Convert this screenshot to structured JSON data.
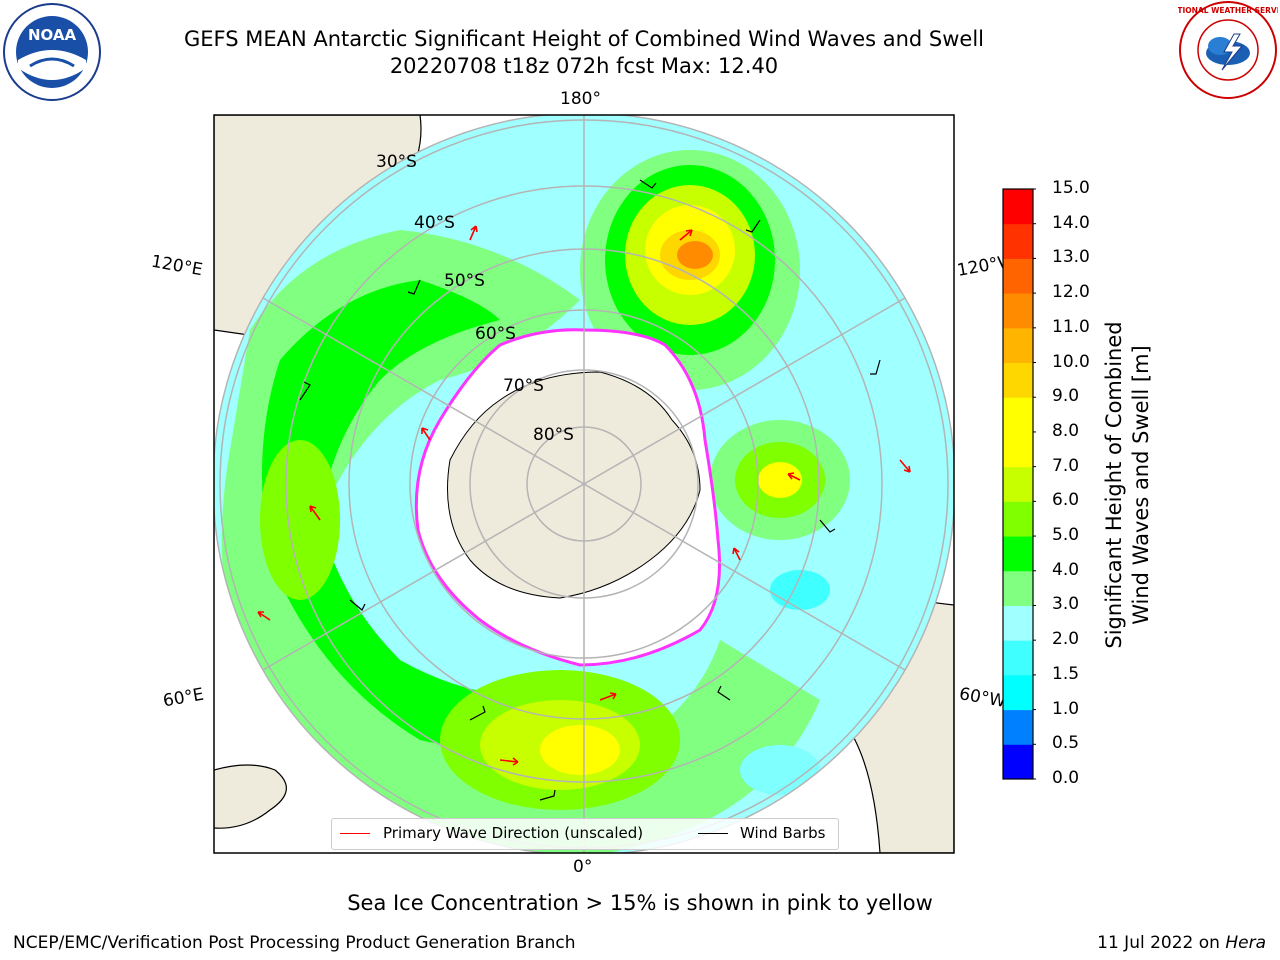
{
  "title": {
    "line1": "GEFS MEAN Antarctic Significant Height of Combined Wind Waves and Swell",
    "line2": "20220708 t18z 072h fcst   Max: 12.40"
  },
  "logos": {
    "left": {
      "name": "noaa-logo",
      "text": "NOAA"
    },
    "right": {
      "name": "nws-logo",
      "text": "NATIONAL WEATHER SERVICE"
    }
  },
  "map": {
    "projection": "south polar stereographic",
    "latitude_labels": [
      "30°S",
      "40°S",
      "50°S",
      "60°S",
      "70°S",
      "80°S"
    ],
    "longitude_labels": {
      "top": "180°",
      "bottom": "0°",
      "left_upper": "120°E",
      "left_lower": "60°E",
      "right_upper": "120°W",
      "right_lower": "60°W"
    },
    "colors": {
      "land": "#efebdc",
      "ice": "#ffffff",
      "ice_edge": "#ff33ff",
      "graticule": "#b4b4b4",
      "coast": "#000000"
    }
  },
  "colorbar": {
    "label": "Significant Height of Combined Wind Waves and Swell [m]",
    "label_line1": "Significant Height of Combined",
    "label_line2": "Wind Waves and Swell [m]",
    "ticks": [
      "0.0",
      "0.5",
      "1.0",
      "1.5",
      "2.0",
      "3.0",
      "4.0",
      "5.0",
      "6.0",
      "7.0",
      "8.0",
      "9.0",
      "10.0",
      "11.0",
      "12.0",
      "13.0",
      "14.0",
      "15.0"
    ],
    "colors": [
      "#0000ff",
      "#0080ff",
      "#00ffff",
      "#40ffff",
      "#a0ffff",
      "#80ff80",
      "#00ff00",
      "#80ff00",
      "#c8ff00",
      "#ffff00",
      "#ffff00",
      "#ffd700",
      "#ffb400",
      "#ff8c00",
      "#ff6400",
      "#ff3200",
      "#ff0000"
    ]
  },
  "legend": {
    "wave_label": "Primary Wave Direction (unscaled)",
    "wave_color": "#ff0000",
    "wind_label": "Wind Barbs",
    "wind_color": "#000000"
  },
  "subtitle": "Sea Ice Concentration > 15% is shown in pink to yellow",
  "footer": {
    "left": "NCEP/EMC/Verification Post Processing Product Generation Branch",
    "date": "11 Jul 2022 on ",
    "machine": "Hera"
  }
}
